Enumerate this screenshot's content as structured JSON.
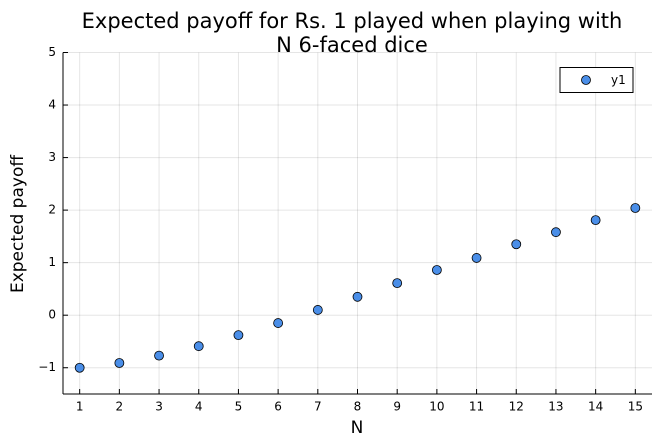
{
  "chart_data": {
    "type": "scatter",
    "title": [
      "Expected payoff for Rs. 1 played when playing with",
      "N 6-faced dice"
    ],
    "x_label": "N",
    "y_label": "Expected payoff",
    "series": [
      {
        "name": "y1",
        "color": "#4a8ee8",
        "x": [
          1,
          2,
          3,
          4,
          5,
          6,
          7,
          8,
          9,
          10,
          11,
          12,
          13,
          14,
          15
        ],
        "values": [
          -1.0,
          -0.91,
          -0.77,
          -0.59,
          -0.38,
          -0.15,
          0.1,
          0.35,
          0.61,
          0.86,
          1.09,
          1.35,
          1.58,
          1.81,
          2.04
        ]
      }
    ],
    "xlim": [
      0.58,
      15.42
    ],
    "xticks": [
      1,
      2,
      3,
      4,
      5,
      6,
      7,
      8,
      9,
      10,
      11,
      12,
      13,
      14,
      15
    ],
    "ylim": [
      -1.5,
      5
    ],
    "yticks": [
      {
        "value": -1,
        "label": "−1"
      },
      0,
      1,
      2,
      3,
      4,
      5
    ],
    "grid": true,
    "legend": "top-right"
  }
}
